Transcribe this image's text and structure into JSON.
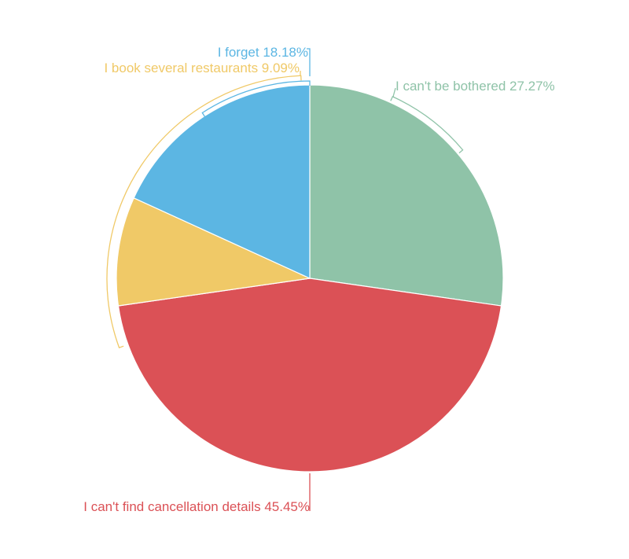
{
  "chart_data": {
    "type": "pie",
    "start_angle": "top",
    "direction": "clockwise",
    "legend": "none",
    "slices": [
      {
        "label": "I can't be bothered",
        "value": 27.27,
        "display": "I can't be bothered 27.27%",
        "color": "#8fc3a8"
      },
      {
        "label": "I can't find cancellation details",
        "value": 45.45,
        "display": "I can't find cancellation details 45.45%",
        "color": "#db5156"
      },
      {
        "label": "I book several restaurants",
        "value": 9.09,
        "display": "I book several restaurants 9.09%",
        "color": "#f0c967"
      },
      {
        "label": "I forget",
        "value": 18.18,
        "display": "I forget 18.18%",
        "color": "#5cb6e3"
      }
    ]
  }
}
